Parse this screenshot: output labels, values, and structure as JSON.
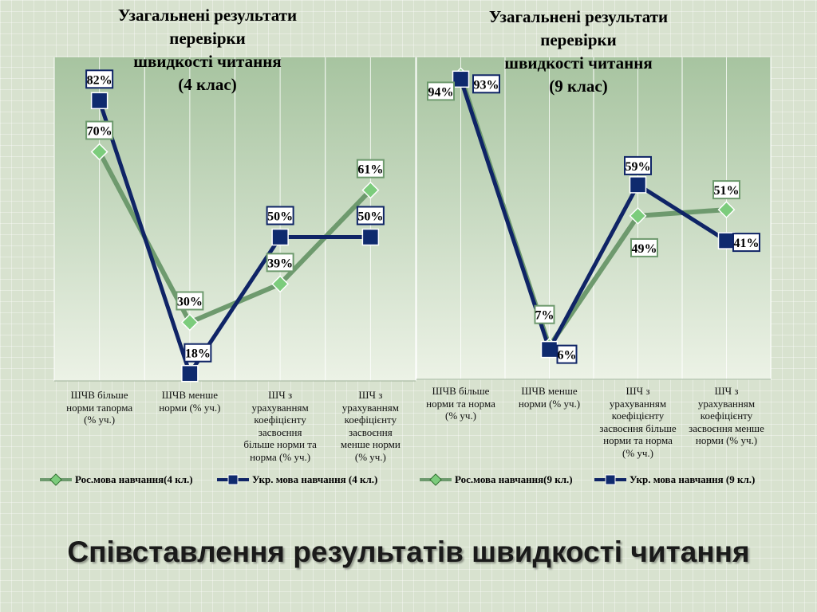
{
  "colors": {
    "ros_series": "#6e9a6e",
    "ros_marker": "#7ccc7c",
    "ukr_series": "#0f2466",
    "ukr_marker": "#0f2a6e",
    "plot_bg_top": "#a7c4a0",
    "plot_bg_bottom": "#ecf2e6"
  },
  "chart_data": [
    {
      "type": "line",
      "title": [
        "Узагальнені результати",
        "перевірки",
        "швидкості читання",
        "(4 клас)"
      ],
      "categories": [
        "ШЧВ більше норми таnорма (% уч.)",
        "ШЧВ менше норми (% уч.)",
        "ШЧ з урахуванням коефіцієнту засвоєння більше норми та норма (% уч.)",
        "ШЧ з урахуванням коефіцієнту засвоєння менше  норми (% уч.)"
      ],
      "category_lines": [
        [
          "ШЧВ більше",
          "норми таnорма",
          "(% уч.)"
        ],
        [
          "ШЧВ менше",
          "норми (% уч.)"
        ],
        [
          "ШЧ з",
          "урахуванням",
          "коефіцієнту",
          "засвоєння",
          "більше норми та",
          "норма (% уч.)"
        ],
        [
          "ШЧ з",
          "урахуванням",
          "коефіцієнту",
          "засвоєння",
          "менше  норми",
          "(% уч.)"
        ]
      ],
      "series": [
        {
          "name": "Рос.мова навчання(4 кл.)",
          "values": [
            70,
            30,
            39,
            61
          ],
          "labels": [
            "70%",
            "30%",
            "39%",
            "61%"
          ]
        },
        {
          "name": "Укр. мова навчання (4 кл.)",
          "values": [
            82,
            18,
            50,
            50
          ],
          "labels": [
            "82%",
            "18%",
            "50%",
            "50%"
          ]
        }
      ],
      "ylim": [
        0,
        100
      ],
      "grid": "vertical",
      "legend": "bottom"
    },
    {
      "type": "line",
      "title": [
        "Узагальнені результати",
        "перевірки",
        "швидкості читання",
        "(9 клас)"
      ],
      "categories": [
        "ШЧВ більше норми та норма (% уч.)",
        "ШЧВ менше норми (% уч.)",
        "ШЧ з урахуванням коефіцієнту засвоєння більше норми та норма (% уч.)",
        "ШЧ з урахуванням коефіцієнту засвоєння менше норми (% уч.)"
      ],
      "category_lines": [
        [
          "ШЧВ більше",
          "норми та норма",
          "(% уч.)"
        ],
        [
          "ШЧВ менше",
          "норми (% уч.)"
        ],
        [
          "ШЧ з",
          "урахуванням",
          "коефіцієнту",
          "засвоєння більше",
          "норми та норма",
          "(% уч.)"
        ],
        [
          "ШЧ з",
          "урахуванням",
          "коефіцієнту",
          "засвоєння менше",
          "норми (% уч.)"
        ]
      ],
      "series": [
        {
          "name": "Рос.мова навчання(9 кл.)",
          "values": [
            94,
            7,
            49,
            51
          ],
          "labels": [
            "94%",
            "7%",
            "49%",
            "51%"
          ]
        },
        {
          "name": "Укр. мова навчання (9 кл.)",
          "values": [
            93,
            6,
            59,
            41
          ],
          "labels": [
            "93%",
            "6%",
            "59%",
            "41%"
          ]
        }
      ],
      "ylim": [
        0,
        100
      ],
      "grid": "vertical",
      "legend": "bottom"
    }
  ],
  "slide_title": "Співставлення результатів швидкості читання"
}
